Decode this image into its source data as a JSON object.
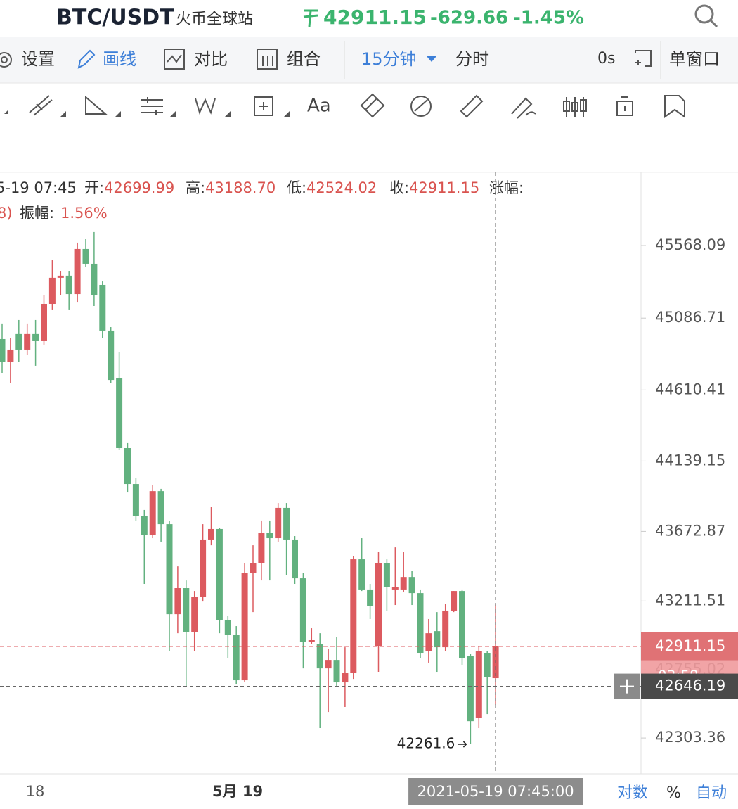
{
  "header": {
    "symbol": "BTC/USDT",
    "exchange": "火币全球站",
    "price": "42911.15",
    "change": "-629.66",
    "change_pct": "-1.45%"
  },
  "toolbar": {
    "items": [
      "设置",
      "画线",
      "对比",
      "组合"
    ],
    "interval": "15分钟",
    "timeshare": "分时",
    "countdown_setting": "0s",
    "window": "单窗口"
  },
  "drawing_tools": {
    "text_tool": "Aa"
  },
  "info": {
    "time": "5-19 07:45",
    "open_label": "开:",
    "open": "42699.99",
    "high_label": "高:",
    "high": "43188.70",
    "low_label": "低:",
    "low": "42524.02",
    "close_label": "收:",
    "close": "42911.15",
    "change_label": "涨幅:",
    "prev": "8)",
    "amplitude_label": "振幅:",
    "amplitude": "1.56%"
  },
  "chart": {
    "type": "candlestick",
    "up_color": "#dc5a5f",
    "down_color": "#62b17f",
    "ylim": [
      42066,
      46053
    ],
    "yticks": [
      45568.09,
      45086.71,
      44610.41,
      44139.15,
      43672.87,
      43211.51,
      42755.02,
      42303.36
    ],
    "candles": [
      [
        44948,
        45051,
        44724,
        44794
      ],
      [
        44794,
        44957,
        44654,
        44878
      ],
      [
        44981,
        45074,
        44794,
        44878
      ],
      [
        44878,
        45051,
        44841,
        44981
      ],
      [
        44981,
        45074,
        44771,
        44934
      ],
      [
        44934,
        45237,
        44911,
        45181
      ],
      [
        45181,
        45470,
        45144,
        45354
      ],
      [
        45354,
        45400,
        45237,
        45368
      ],
      [
        45368,
        45400,
        45144,
        45246
      ],
      [
        45246,
        45587,
        45190,
        45545
      ],
      [
        45545,
        45610,
        45424,
        45447
      ],
      [
        45447,
        45657,
        45167,
        45237
      ],
      [
        45307,
        45330,
        44957,
        45004
      ],
      [
        45004,
        45027,
        44654,
        44677
      ],
      [
        44687,
        44864,
        44211,
        44225
      ],
      [
        44225,
        44258,
        43931,
        43987
      ],
      [
        43987,
        44025,
        43745,
        43777
      ],
      [
        43777,
        43815,
        43325,
        43651
      ],
      [
        43651,
        43978,
        43628,
        43940
      ],
      [
        43940,
        43955,
        43605,
        43721
      ],
      [
        43721,
        43745,
        42882,
        43124
      ],
      [
        43124,
        43441,
        42998,
        43297
      ],
      [
        43297,
        43348,
        42649,
        43008
      ],
      [
        43008,
        43278,
        42882,
        43241
      ],
      [
        43241,
        43721,
        43208,
        43619
      ],
      [
        43619,
        43838,
        43581,
        43689
      ],
      [
        43689,
        43698,
        42998,
        43083
      ],
      [
        43083,
        43115,
        42835,
        42989
      ],
      [
        42989,
        43045,
        42658,
        42686
      ],
      [
        42686,
        43464,
        42672,
        43395
      ],
      [
        43395,
        43581,
        43138,
        43464
      ],
      [
        43464,
        43745,
        43348,
        43661
      ],
      [
        43661,
        43745,
        43348,
        43628
      ],
      [
        43628,
        43861,
        43605,
        43829
      ],
      [
        43829,
        43861,
        43381,
        43619
      ],
      [
        43619,
        43642,
        43325,
        43362
      ],
      [
        43362,
        43395,
        42765,
        42942
      ],
      [
        42942,
        43031,
        42928,
        42952
      ],
      [
        42928,
        42998,
        42369,
        42765
      ],
      [
        42765,
        42896,
        42476,
        42821
      ],
      [
        42821,
        42975,
        42649,
        42672
      ],
      [
        42672,
        42905,
        42509,
        42733
      ],
      [
        42733,
        43511,
        42695,
        43488
      ],
      [
        43488,
        43628,
        43278,
        43288
      ],
      [
        43288,
        43325,
        43092,
        43176
      ],
      [
        42914,
        43535,
        42742,
        43464
      ],
      [
        43464,
        43488,
        43148,
        43302
      ],
      [
        43288,
        43567,
        43185,
        43302
      ],
      [
        43288,
        43535,
        43269,
        43371
      ],
      [
        43371,
        43409,
        43185,
        43264
      ],
      [
        43264,
        43288,
        42835,
        42868
      ],
      [
        42882,
        43092,
        42803,
        42998
      ],
      [
        43012,
        43138,
        42742,
        42905
      ],
      [
        42905,
        43194,
        42882,
        43148
      ],
      [
        43148,
        43278,
        43138,
        43278
      ],
      [
        43278,
        43288,
        42789,
        42835
      ],
      [
        42849,
        42859,
        42261.6,
        42415
      ],
      [
        42439,
        42914,
        42369,
        42882
      ],
      [
        42868,
        42882,
        42462,
        42709
      ],
      [
        42699.99,
        43188.7,
        42524.02,
        42911.15
      ]
    ],
    "last_price": 42911.15,
    "last_price_label": "42911.15",
    "countdown": "03:58",
    "crosshair_price": 42646.19,
    "crosshair_price_label": "42646.19",
    "crosshair_time": "2021-05-19 07:45:00",
    "low_annotation": "42261.6",
    "x_labels": [
      "18",
      "5月 19"
    ],
    "scale_buttons": [
      "对数",
      "%",
      "自动"
    ]
  }
}
